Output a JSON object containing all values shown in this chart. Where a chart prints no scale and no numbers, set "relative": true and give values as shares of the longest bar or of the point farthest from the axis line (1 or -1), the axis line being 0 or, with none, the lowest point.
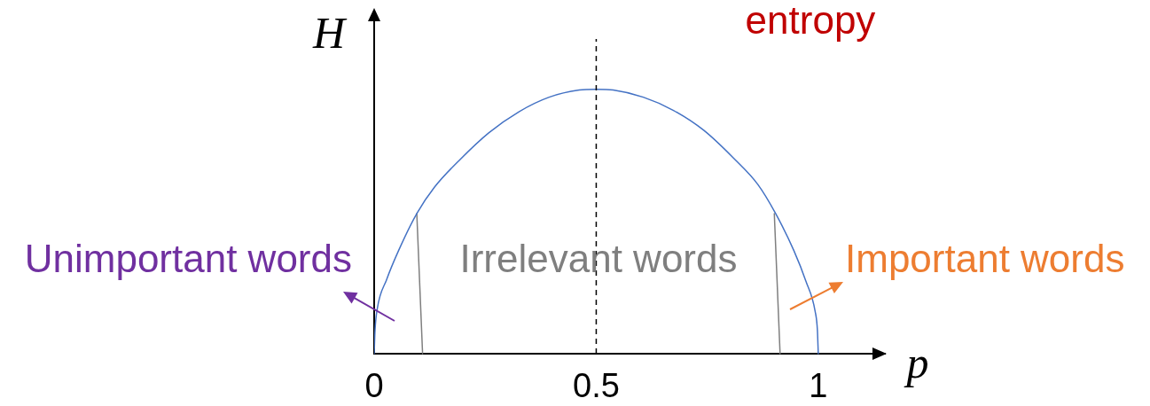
{
  "chart_data": {
    "type": "line",
    "title": "entropy",
    "xlabel": "p",
    "ylabel": "H",
    "relative": true,
    "xlim": [
      0,
      1.15
    ],
    "xticks": [
      0,
      0.5,
      1
    ],
    "tick_labels": "x",
    "line_style": "solid",
    "series": [
      {
        "color": "#4472c4",
        "x": [
          0,
          0.002,
          0.007,
          0.028,
          0.055,
          0.096,
          0.136,
          0.191,
          0.258,
          0.326,
          0.394,
          0.462,
          0.5,
          0.538,
          0.606,
          0.674,
          0.742,
          0.809,
          0.864,
          0.904,
          0.945,
          0.972,
          0.993,
          0.998,
          1
        ],
        "values": [
          0,
          0.09,
          0.17,
          0.28,
          0.39,
          0.53,
          0.63,
          0.73,
          0.835,
          0.915,
          0.97,
          0.997,
          1,
          0.997,
          0.97,
          0.92,
          0.845,
          0.74,
          0.64,
          0.53,
          0.39,
          0.275,
          0.16,
          0.09,
          0
        ]
      },
      {
        "color": "#7f7f7f",
        "x": [
          0.096,
          0.109
        ],
        "values": [
          0.53,
          0
        ]
      },
      {
        "color": "#7f7f7f",
        "x": [
          0.901,
          0.914
        ],
        "values": [
          0.53,
          0
        ]
      }
    ],
    "ref_lines": [
      {
        "axis": "x",
        "value": 0.5,
        "color": "#000000",
        "line_style": "dashed"
      }
    ],
    "annotations": [
      "Unimportant words",
      "Irrelevant words",
      "Important words"
    ]
  }
}
